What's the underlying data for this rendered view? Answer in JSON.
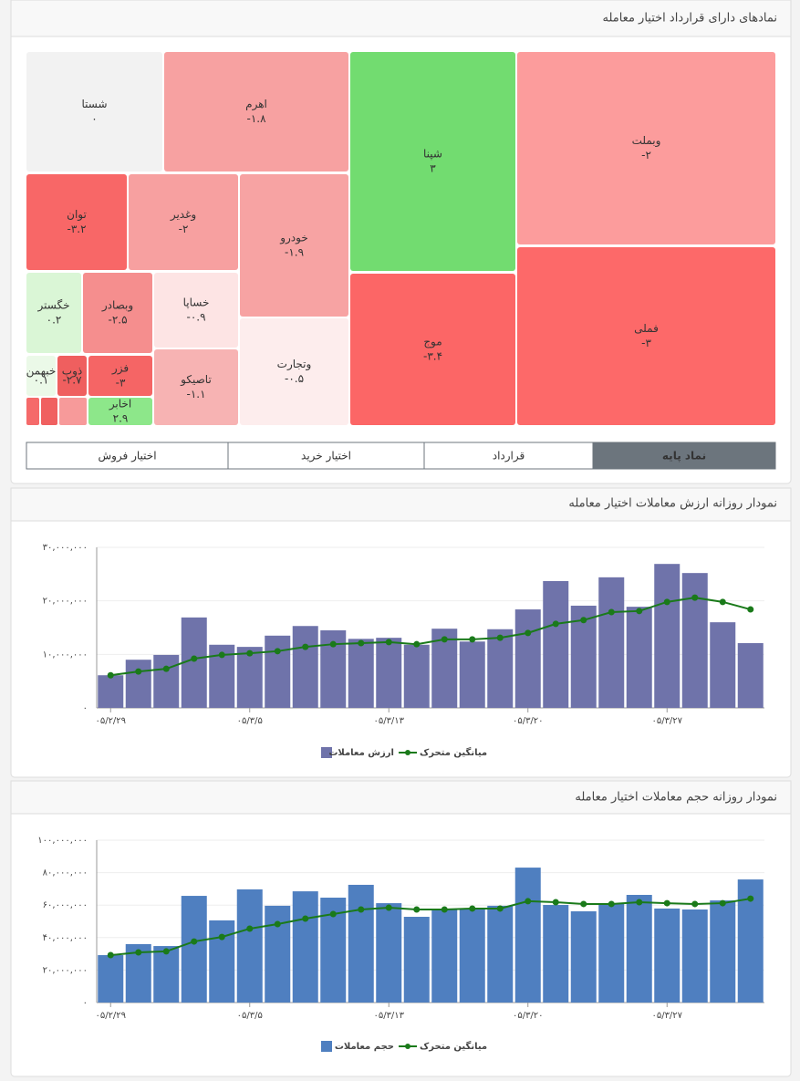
{
  "header": {
    "title": "نمادهای دارای قرارداد اختیار معامله"
  },
  "treemap": {
    "nodes": [
      {
        "name": "شستا",
        "label": "۰",
        "color": "#f2f2f2"
      },
      {
        "name": "اهرم",
        "label": "۱.۸-",
        "color": "#f7a1a1"
      },
      {
        "name": "شپنا",
        "label": "۳",
        "color": "#72dc70"
      },
      {
        "name": "وبملت",
        "label": "۲-",
        "color": "#fc9c9c"
      },
      {
        "name": "فملی",
        "label": "۳-",
        "color": "#fd6969"
      },
      {
        "name": "موج",
        "label": "۳.۴-",
        "color": "#fc6666"
      },
      {
        "name": "توان",
        "label": "۳.۲-",
        "color": "#f86767"
      },
      {
        "name": "وغدیر",
        "label": "۲-",
        "color": "#f7a0a0"
      },
      {
        "name": "خودرو",
        "label": "۱.۹-",
        "color": "#f7a3a3"
      },
      {
        "name": "خگستر",
        "label": "۰.۲",
        "color": "#daf6d6"
      },
      {
        "name": "وبصادر",
        "label": "۲.۵-",
        "color": "#f58e8e"
      },
      {
        "name": "خساپا",
        "label": "۰.۹-",
        "color": "#fde4e4"
      },
      {
        "name": "وتجارت",
        "label": "۰.۵-",
        "color": "#fdeded"
      },
      {
        "name": "تاصیکو",
        "label": "۱.۱-",
        "color": "#f7b3b3"
      },
      {
        "name": "خبهمن",
        "label": "۰.۱",
        "color": "#ebf9e8"
      },
      {
        "name": "ذوب",
        "label": "۲.۷-",
        "color": "#ef5f5f"
      },
      {
        "name": "فزر",
        "label": "۳-",
        "color": "#f56565"
      },
      {
        "name": "اخابر",
        "label": "۲.۹",
        "color": "#8de78a"
      }
    ]
  },
  "tabs": [
    "نماد پایه",
    "قرارداد",
    "اختیار خرید",
    "اختیار فروش"
  ],
  "chart_data": [
    {
      "type": "bar",
      "title": "نمودار روزانه ارزش معاملات اختیار معامله",
      "categories": [
        "۰۵/۲/۲۹",
        null,
        null,
        null,
        null,
        "۰۵/۳/۵",
        null,
        null,
        null,
        null,
        "۰۵/۳/۱۳",
        null,
        null,
        null,
        null,
        "۰۵/۳/۲۰",
        null,
        null,
        null,
        null,
        "۰۵/۳/۲۷",
        null,
        null,
        null
      ],
      "series": [
        {
          "name": "ارزش معاملات",
          "type": "bar",
          "color": "#6f73aa",
          "values": [
            6100000,
            9000000,
            9900000,
            16900000,
            11800000,
            11400000,
            13500000,
            15300000,
            14500000,
            12900000,
            13100000,
            11800000,
            14800000,
            12400000,
            14700000,
            18400000,
            23700000,
            19100000,
            24400000,
            18900000,
            26900000,
            25200000,
            16000000,
            12100000
          ]
        },
        {
          "name": "میانگین متحرک",
          "type": "line",
          "color": "#1a7a1a",
          "values": [
            6100000,
            6800000,
            7300000,
            9200000,
            9900000,
            10200000,
            10600000,
            11400000,
            11900000,
            12100000,
            12300000,
            11900000,
            12800000,
            12800000,
            13100000,
            14000000,
            15700000,
            16400000,
            17900000,
            18100000,
            19800000,
            20600000,
            19800000,
            18400000
          ]
        }
      ],
      "ylim": [
        0,
        30000000
      ],
      "yticks": [
        {
          "value": 0,
          "label": "۰"
        },
        {
          "value": 10000000,
          "label": "۱۰,۰۰۰,۰۰۰"
        },
        {
          "value": 20000000,
          "label": "۲۰,۰۰۰,۰۰۰"
        },
        {
          "value": 30000000,
          "label": "۳۰,۰۰۰,۰۰۰"
        }
      ],
      "grid": true
    },
    {
      "type": "bar",
      "title": "نمودار روزانه حجم معاملات اختیار معامله",
      "categories": [
        "۰۵/۲/۲۹",
        null,
        null,
        null,
        null,
        "۰۵/۳/۵",
        null,
        null,
        null,
        null,
        "۰۵/۳/۱۳",
        null,
        null,
        null,
        null,
        "۰۵/۳/۲۰",
        null,
        null,
        null,
        null,
        "۰۵/۳/۲۷",
        null,
        null,
        null
      ],
      "series": [
        {
          "name": "حجم معاملات",
          "type": "bar",
          "color": "#4f7fc0",
          "values": [
            29200000,
            36000000,
            34800000,
            65700000,
            50600000,
            69700000,
            59600000,
            68500000,
            64600000,
            72500000,
            61200000,
            52800000,
            57300000,
            57900000,
            59600000,
            83100000,
            60100000,
            56200000,
            61200000,
            66300000,
            57900000,
            57300000,
            62900000,
            75800000
          ]
        },
        {
          "name": "میانگین متحرک",
          "type": "line",
          "color": "#1a7a1a",
          "values": [
            29200000,
            30900000,
            31500000,
            37600000,
            40400000,
            45500000,
            48300000,
            51700000,
            54500000,
            57300000,
            58400000,
            57300000,
            57300000,
            57900000,
            57900000,
            62400000,
            61800000,
            60700000,
            60700000,
            61800000,
            61200000,
            60700000,
            61200000,
            64000000
          ]
        }
      ],
      "ylim": [
        0,
        100000000
      ],
      "yticks": [
        {
          "value": 0,
          "label": "۰"
        },
        {
          "value": 20000000,
          "label": "۲۰,۰۰۰,۰۰۰"
        },
        {
          "value": 40000000,
          "label": "۴۰,۰۰۰,۰۰۰"
        },
        {
          "value": 60000000,
          "label": "۶۰,۰۰۰,۰۰۰"
        },
        {
          "value": 80000000,
          "label": "۸۰,۰۰۰,۰۰۰"
        },
        {
          "value": 100000000,
          "label": "۱۰۰,۰۰۰,۰۰۰"
        }
      ],
      "grid": true
    }
  ]
}
